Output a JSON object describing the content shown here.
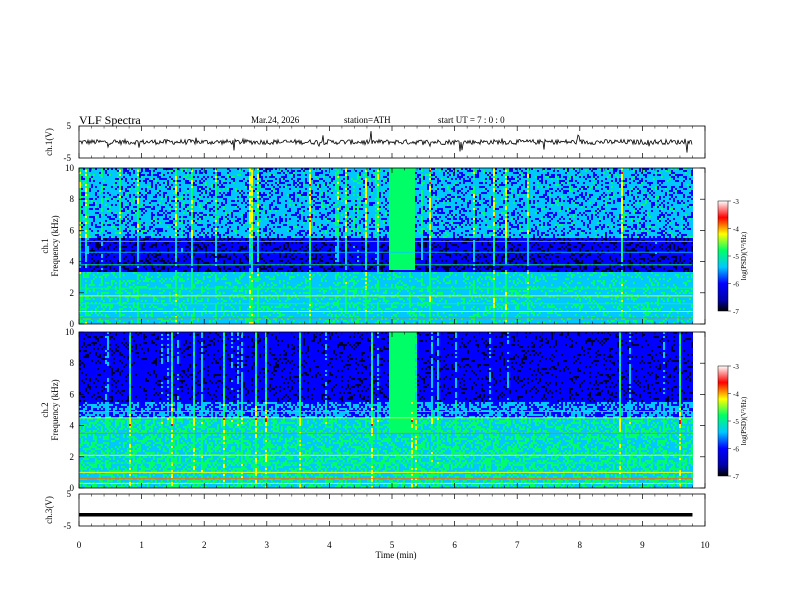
{
  "header": {
    "title": "VLF  Spectra",
    "date": "Mar.24, 2026",
    "station": "station=ATH",
    "start_ut": "start  UT  =    7  : 0   : 0"
  },
  "chart_data": [
    {
      "type": "line",
      "name": "ch1-waveform",
      "ylabel": "ch.1(V)",
      "ylim": [
        -5,
        5
      ],
      "yticks": [
        "5",
        "-5"
      ],
      "x_range": [
        0,
        9.8
      ]
    },
    {
      "type": "heatmap",
      "name": "ch1-spectrogram",
      "ylabel": "ch.1\nFrequency  (kHz)",
      "ylabel_top": "ch.1",
      "ylabel_bottom": "Frequency  (kHz)",
      "ylim": [
        0,
        10
      ],
      "yticks": [
        "0",
        "2",
        "4",
        "6",
        "8",
        "10"
      ],
      "x_range": [
        0,
        9.8
      ],
      "colorbar": {
        "label": "log(PSD)(V²/Hz)",
        "range": [
          -7,
          -3
        ],
        "ticks": [
          "-3",
          "-4",
          "-5",
          "-6",
          "-7"
        ]
      }
    },
    {
      "type": "heatmap",
      "name": "ch2-spectrogram",
      "ylabel_top": "ch.2",
      "ylabel_bottom": "Frequency  (kHz)",
      "ylim": [
        0,
        10
      ],
      "yticks": [
        "0",
        "2",
        "4",
        "6",
        "8",
        "10"
      ],
      "x_range": [
        0,
        9.8
      ],
      "colorbar": {
        "label": "log(PSD)(V²/Hz)",
        "range": [
          -7,
          -3
        ],
        "ticks": [
          "-3",
          "-4",
          "-5",
          "-6",
          "-7"
        ]
      }
    },
    {
      "type": "line",
      "name": "ch3-waveform",
      "ylabel": "ch.3(V)",
      "ylim": [
        -5,
        5
      ],
      "yticks": [
        "5",
        "-5"
      ],
      "x_range": [
        0,
        9.8
      ],
      "value": -1.5
    }
  ],
  "x_axis": {
    "label": "Time  (min)",
    "ticks": [
      "0",
      "1",
      "2",
      "3",
      "4",
      "5",
      "6",
      "7",
      "8",
      "9",
      "10"
    ],
    "range": [
      0,
      10
    ]
  },
  "colors": {
    "dark": "#000033",
    "blue": "#0000ff",
    "cyan": "#00c8ff",
    "green": "#00ff66",
    "yellow": "#ffff00",
    "red": "#ff0000"
  }
}
